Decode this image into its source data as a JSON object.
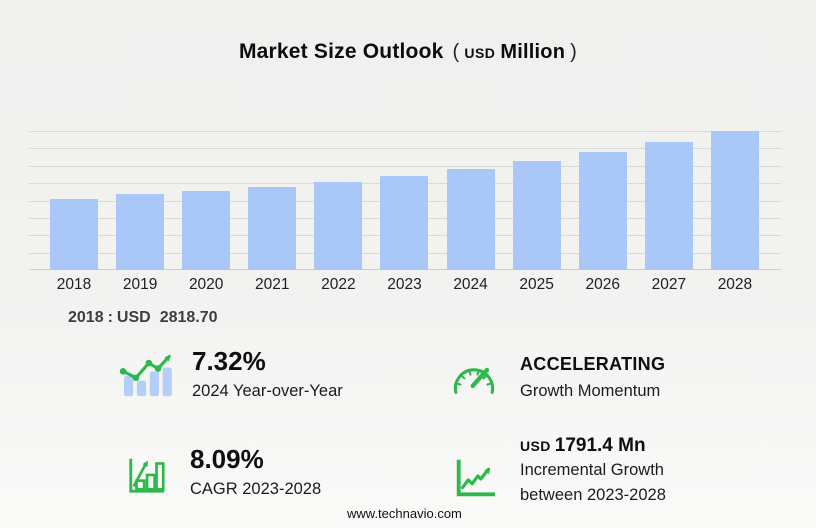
{
  "header": {
    "title": "Market Size Outlook",
    "unit_open": "(",
    "unit_currency": "USD",
    "unit_word": "Million",
    "unit_close": ")"
  },
  "chart_data": {
    "type": "bar",
    "title": "Market Size Outlook (USD Million)",
    "unit": "USD Million",
    "categories": [
      "2018",
      "2019",
      "2020",
      "2021",
      "2022",
      "2023",
      "2024",
      "2025",
      "2026",
      "2027",
      "2028"
    ],
    "values": [
      2818.7,
      3031,
      3152,
      3321,
      3519,
      3760,
      4035.2,
      4358,
      4716,
      5116,
      5551.4
    ],
    "xlabel": "",
    "ylabel": "",
    "ylim": [
      0,
      5551.4
    ],
    "grid": "horizontal",
    "gridline_count": 9,
    "legend": "none",
    "bar_color": "#a9c7f7",
    "annotation": "2018 : USD 2818.70"
  },
  "annotation": {
    "year": "2018",
    "separator": ":",
    "currency": "USD",
    "value": "2818.70"
  },
  "stats": {
    "yoy": {
      "icon": "bar-trend-arrow-icon",
      "value": "7.32%",
      "label": "2024 Year-over-Year"
    },
    "momentum": {
      "icon": "gauge-icon",
      "value": "ACCELERATING",
      "label": "Growth Momentum"
    },
    "cagr": {
      "icon": "bar-chart-arrow-icon",
      "value": "8.09%",
      "label": "CAGR 2023-2028"
    },
    "incremental": {
      "icon": "line-chart-arrow-icon",
      "value_currency": "USD",
      "value": "1791.4 Mn",
      "label_line1": "Incremental Growth",
      "label_line2": "between 2023-2028"
    }
  },
  "footer": {
    "url": "www.technavio.com"
  },
  "colors": {
    "bar_blue": "#a9c7f7",
    "icon_blue": "#b3cff8",
    "accent_green": "#2db84b",
    "gridline": "#d9d9d8",
    "axis_line": "#cfcfce",
    "background_top": "#f0f0ef",
    "background_bottom": "#fafaf9",
    "text_dark": "#141414",
    "text_gray": "#3e3e3e"
  }
}
